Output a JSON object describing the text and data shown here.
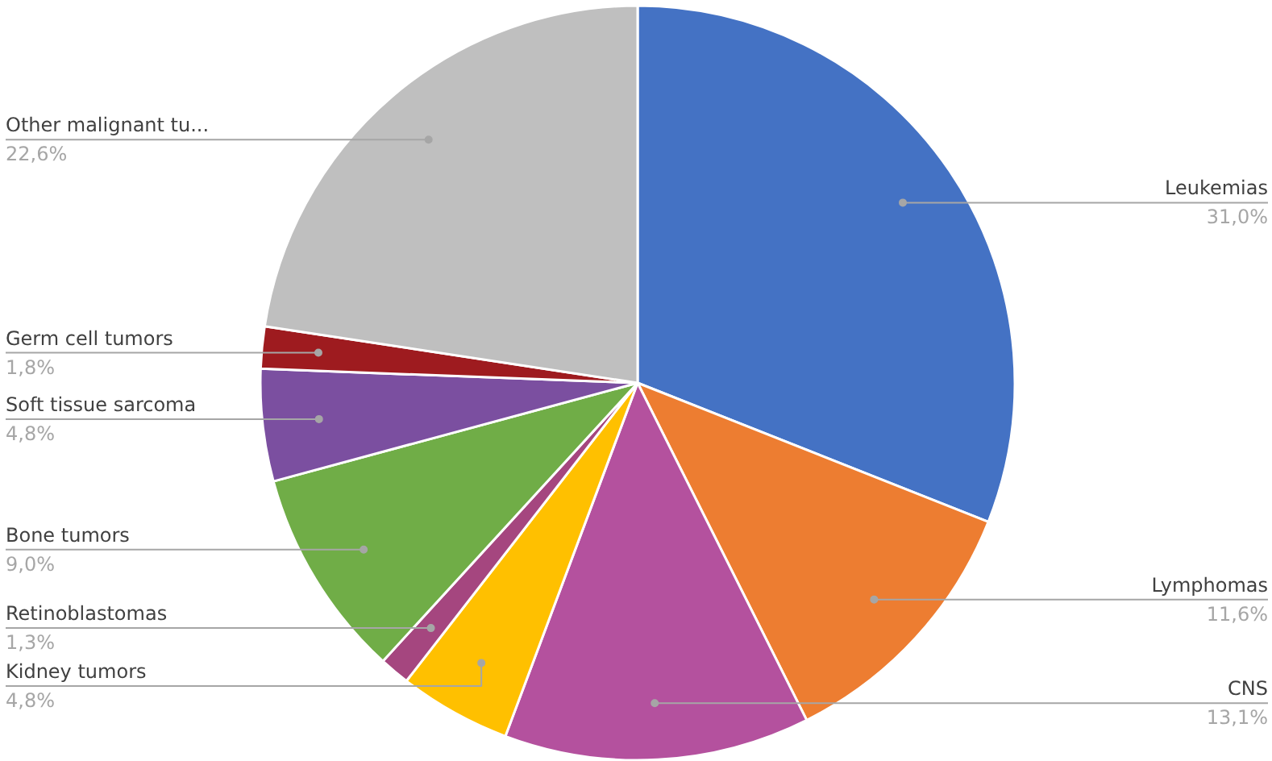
{
  "chart_data": {
    "type": "pie",
    "categories": [
      "Leukemias",
      "Lymphomas",
      "CNS",
      "Kidney tumors",
      "Retinoblastomas",
      "Bone tumors",
      "Soft tissue sarcoma",
      "Germ cell tumors",
      "Other malignant tu..."
    ],
    "values": [
      31.0,
      11.6,
      13.1,
      4.8,
      1.3,
      9.0,
      4.8,
      1.8,
      22.6
    ],
    "colors": [
      "#4472c4",
      "#ed7d31",
      "#b4519e",
      "#ffc000",
      "#a5467f",
      "#70ad47",
      "#7b4fa0",
      "#9e1b1f",
      "#bfbfbf"
    ],
    "value_labels": [
      "31,0%",
      "11,6%",
      "13,1%",
      "4,8%",
      "1,3%",
      "9,0%",
      "4,8%",
      "1,8%",
      "22,6%"
    ]
  }
}
